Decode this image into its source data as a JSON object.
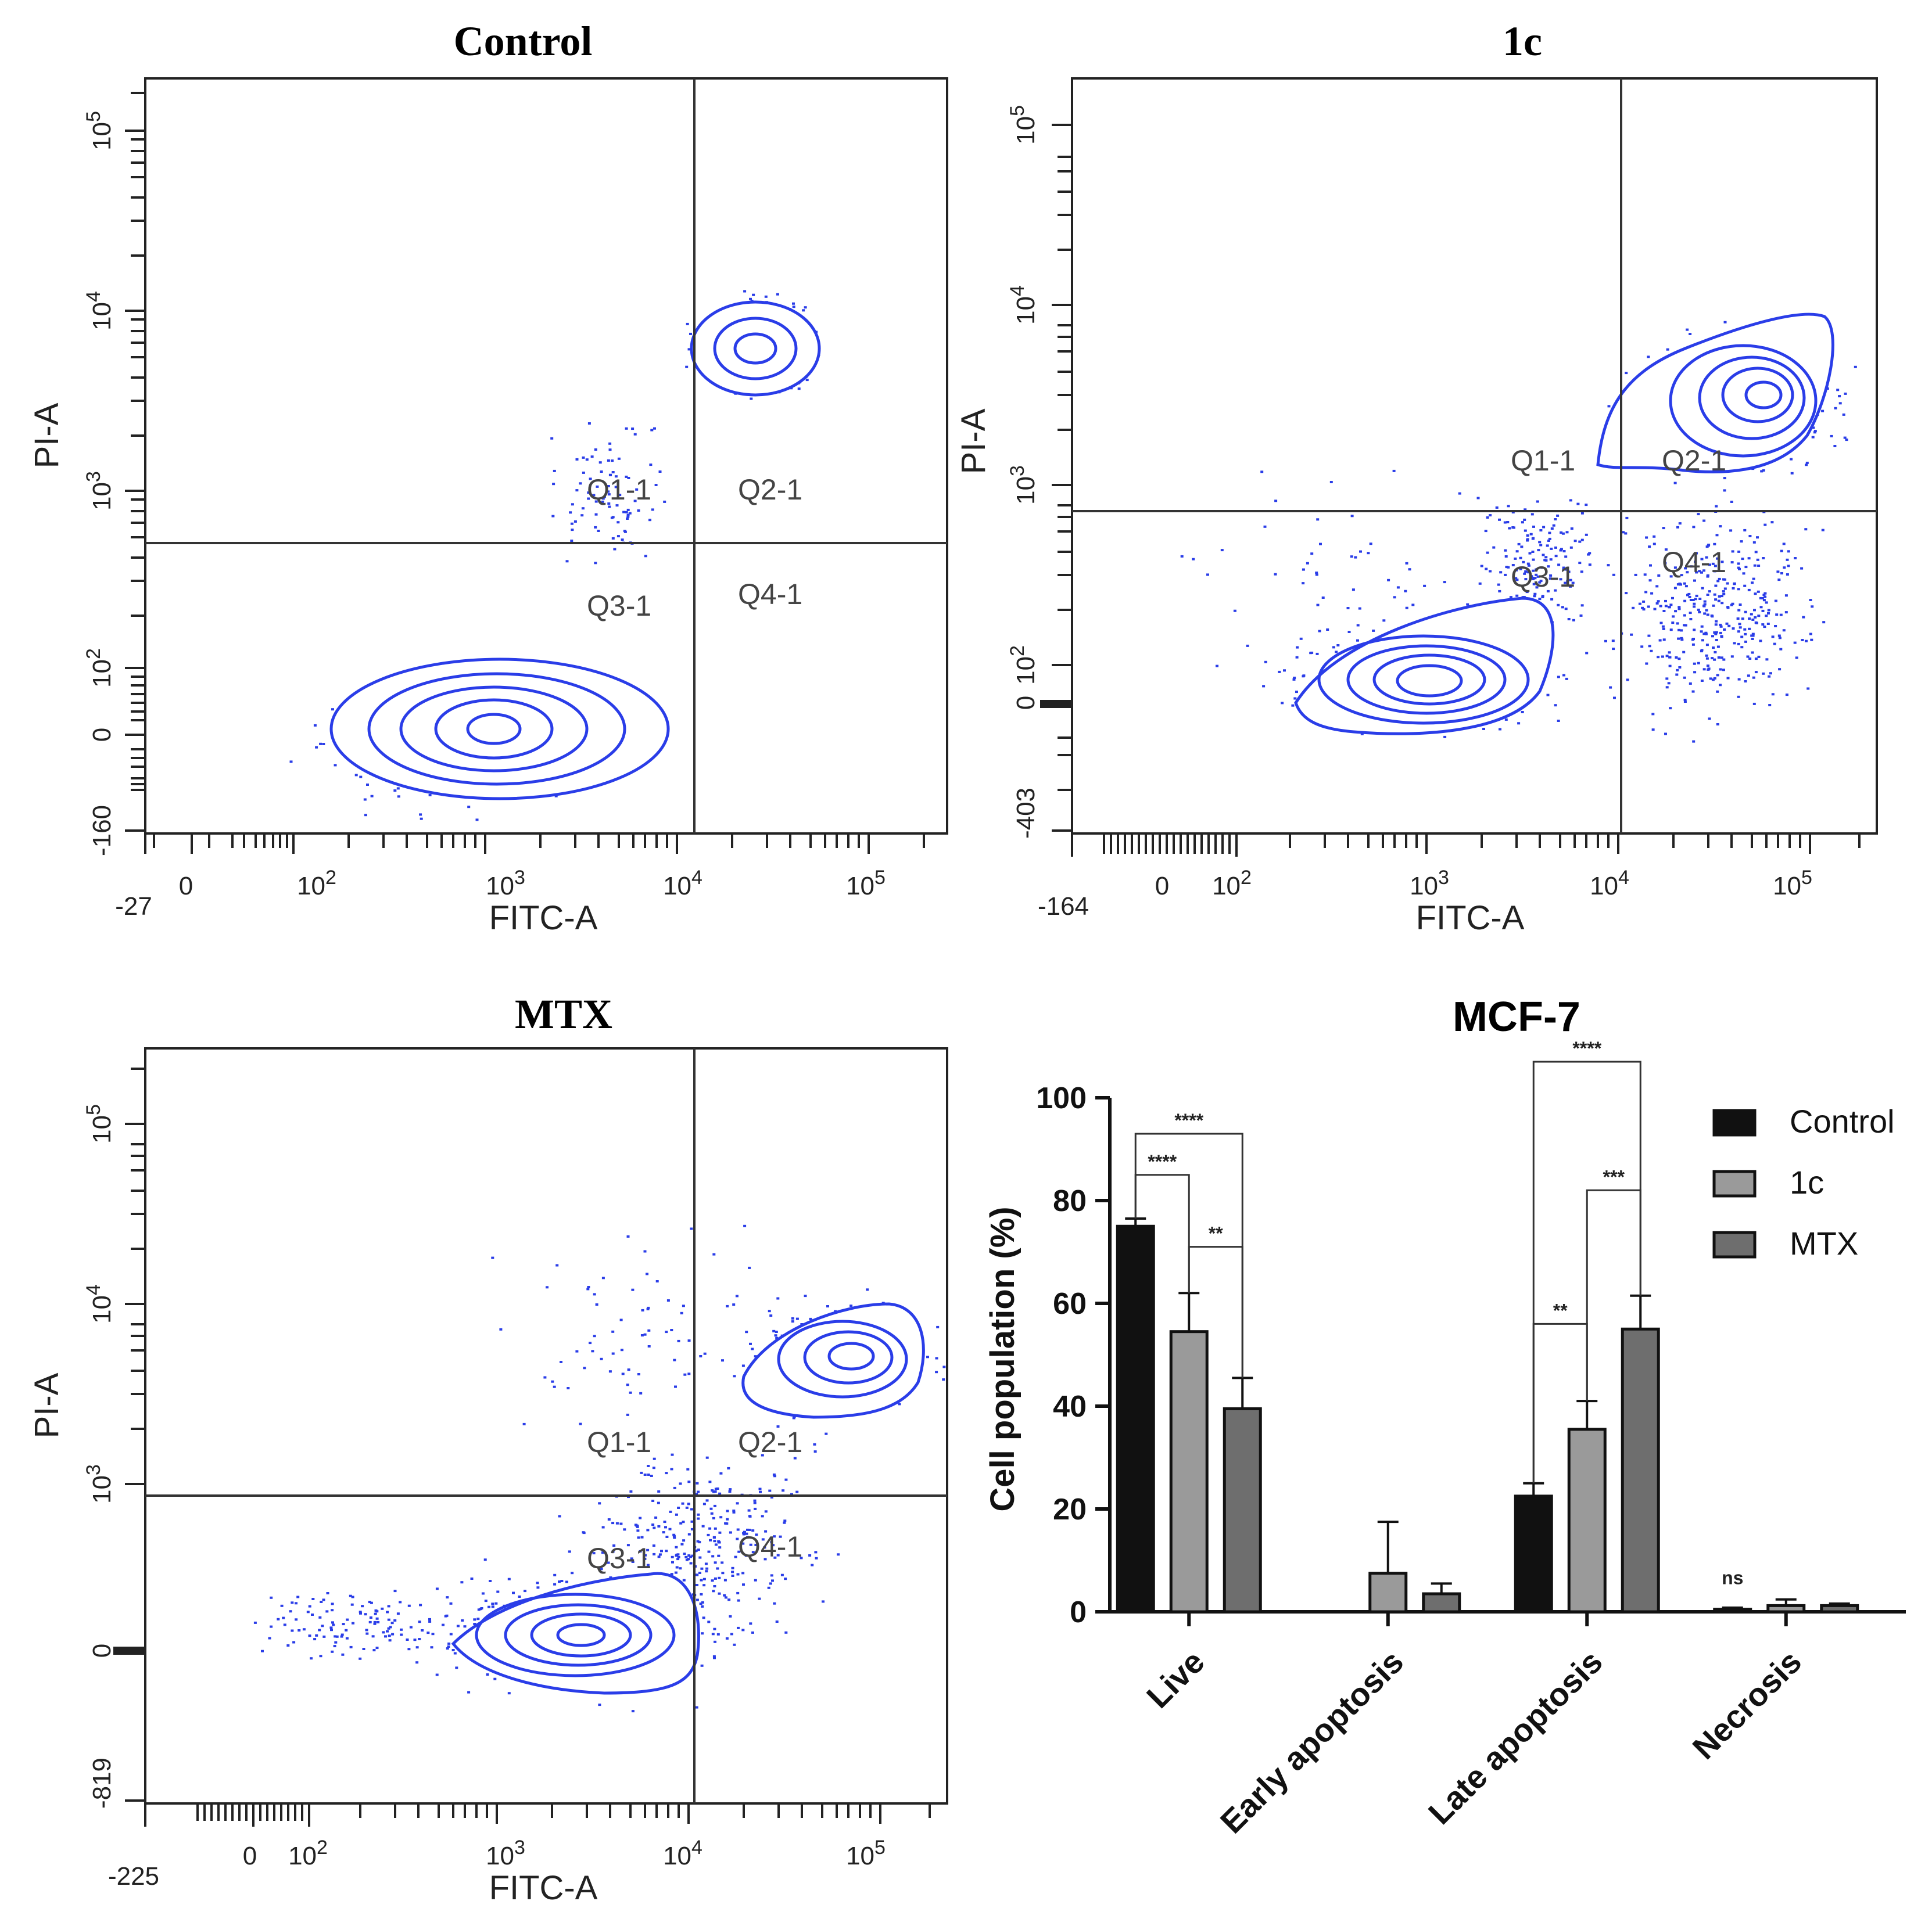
{
  "flow_panels": [
    {
      "title": "Control",
      "xlabel": "FITC-A",
      "ylabel": "PI-A",
      "x_ticks": [
        "-27",
        "0",
        "10^2",
        "10^3",
        "10^4",
        "10^5"
      ],
      "y_ticks": [
        "-160",
        "0",
        "10^2",
        "10^3",
        "10^4",
        "10^5"
      ],
      "quadrants": [
        "Q1-1",
        "Q2-1",
        "Q3-1",
        "Q4-1"
      ],
      "dot_color": "#2a3de8"
    },
    {
      "title": "1c",
      "xlabel": "FITC-A",
      "ylabel": "PI-A",
      "x_ticks": [
        "-164",
        "0",
        "10^2",
        "10^3",
        "10^4",
        "10^5"
      ],
      "y_ticks": [
        "-403",
        "0",
        "10^2",
        "10^3",
        "10^4",
        "10^5"
      ],
      "quadrants": [
        "Q1-1",
        "Q2-1",
        "Q3-1",
        "Q4-1"
      ],
      "dot_color": "#2a3de8"
    },
    {
      "title": "MTX",
      "xlabel": "FITC-A",
      "ylabel": "PI-A",
      "x_ticks": [
        "-225",
        "0",
        "10^2",
        "10^3",
        "10^4",
        "10^5"
      ],
      "y_ticks": [
        "-819",
        "0",
        "10^3",
        "10^4",
        "10^5"
      ],
      "quadrants": [
        "Q1-1",
        "Q2-1",
        "Q3-1",
        "Q4-1"
      ],
      "dot_color": "#2a3de8"
    }
  ],
  "chart_data": {
    "type": "bar",
    "title": "MCF-7",
    "ylabel": "Cell population (%)",
    "xlabel": "",
    "ylim": [
      0,
      100
    ],
    "yticks": [
      0,
      20,
      40,
      60,
      80,
      100
    ],
    "categories": [
      "Live",
      "Early apoptosis",
      "Late apoptosis",
      "Necrosis"
    ],
    "series": [
      {
        "name": "Control",
        "color": "#111111",
        "values": [
          75,
          0,
          22.5,
          0.5
        ],
        "errors": [
          1.5,
          0,
          2.5,
          0.3
        ]
      },
      {
        "name": "1c",
        "color": "#9a9a9a",
        "values": [
          54.5,
          7.5,
          35.5,
          1.2
        ],
        "errors": [
          7.5,
          10,
          5.5,
          1.2
        ]
      },
      {
        "name": "MTX",
        "color": "#6e6e6e",
        "values": [
          39.5,
          3.5,
          55,
          1.2
        ],
        "errors": [
          6,
          2,
          6.5,
          0.4
        ]
      }
    ],
    "significance": [
      {
        "label": "****",
        "category": "Live",
        "from": "Control",
        "to": "MTX"
      },
      {
        "label": "****",
        "category": "Live",
        "from": "Control",
        "to": "1c"
      },
      {
        "label": "**",
        "category": "Live",
        "from": "1c",
        "to": "MTX"
      },
      {
        "label": "****",
        "category": "Late apoptosis",
        "from": "Control",
        "to": "MTX"
      },
      {
        "label": "***",
        "category": "Late apoptosis",
        "from": "1c",
        "to": "MTX"
      },
      {
        "label": "**",
        "category": "Late apoptosis",
        "from": "Control",
        "to": "1c"
      },
      {
        "label": "ns",
        "category": "Necrosis",
        "from": "Control",
        "to": "Control"
      }
    ]
  }
}
